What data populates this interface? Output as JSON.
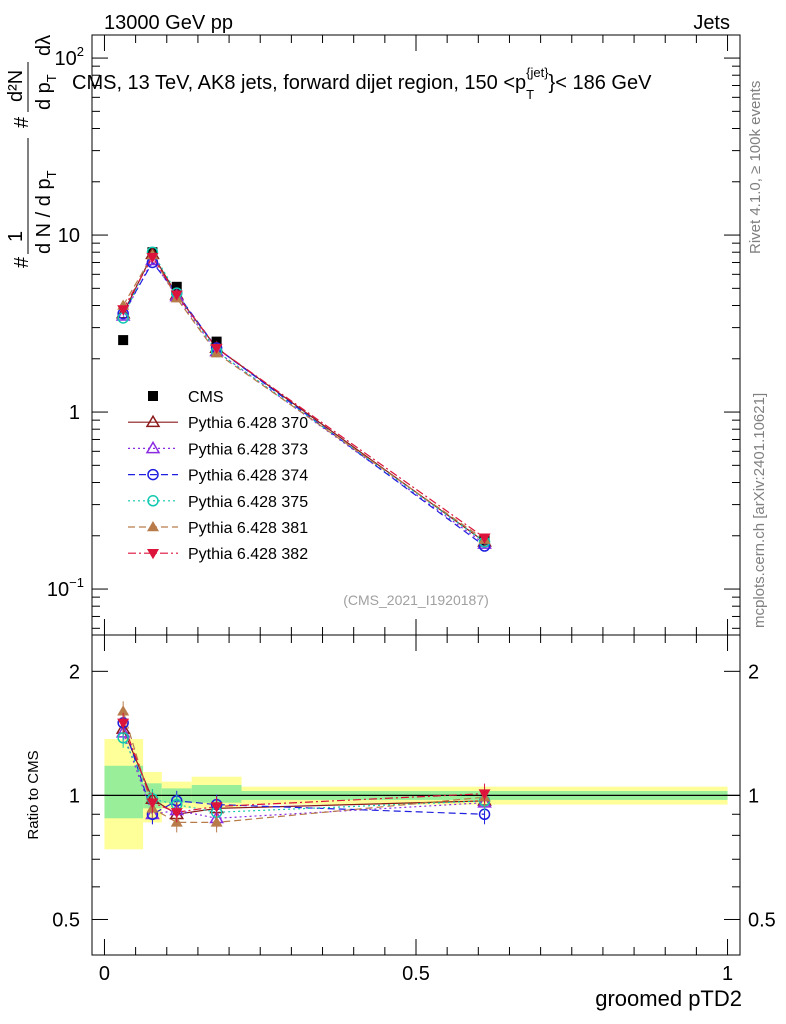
{
  "header": {
    "left": "13000 GeV pp",
    "right": "Jets",
    "side_top": "Rivet 4.1.0, ≥ 100k events",
    "side_bottom": "mcplots.cern.ch [arXiv:2401.10621]",
    "analysis_id": "(CMS_2021_I1920187)"
  },
  "chart_data": [
    {
      "type": "line",
      "panel": "main",
      "title": "CMS, 13 TeV, AK8 jets, forward dijet region, 150 < p_T^{jet} < 186 GeV",
      "title_parts": {
        "main": "CMS, 13 TeV, AK8 jets, forward dijet region, 150 <p",
        "sub": "T",
        "sup": "{jet}",
        "tail": "}< 186 GeV"
      },
      "ylabel": "1/(dN/dp_T) d²N/(dp_T dλ)",
      "ylabel_parts": {
        "hash": "#",
        "one": "1",
        "frac_den": "d N / d p",
        "sub": "T",
        "num": "d²N",
        "den": "d p",
        "den2": "dλ"
      },
      "yscale": "log",
      "ylim": [
        0.055,
        135
      ],
      "xlim": [
        -0.02,
        1.02
      ],
      "yticks": [
        {
          "value": 0.1,
          "label": "10",
          "exp": "−1"
        },
        {
          "value": 1,
          "label": "1",
          "exp": ""
        },
        {
          "value": 10,
          "label": "10",
          "exp": ""
        },
        {
          "value": 100,
          "label": "10",
          "exp": "2"
        }
      ],
      "x": [
        0.03,
        0.077,
        0.116,
        0.18,
        0.61
      ],
      "series": [
        {
          "name": "CMS",
          "color": "#000000",
          "marker": "square-filled",
          "line": "none",
          "values": [
            2.55,
            8.0,
            5.1,
            2.5,
            0.19
          ]
        },
        {
          "name": "Pythia 6.428 370",
          "color": "#8b1a1a",
          "marker": "triangle-open",
          "line": "solid",
          "values": [
            3.6,
            7.8,
            4.6,
            2.3,
            0.185
          ]
        },
        {
          "name": "Pythia 6.428 373",
          "color": "#8a2be2",
          "marker": "triangle-open",
          "line": "dotted",
          "values": [
            3.5,
            7.2,
            4.5,
            2.2,
            0.18
          ]
        },
        {
          "name": "Pythia 6.428 374",
          "color": "#1f1fdf",
          "marker": "circle-open",
          "line": "dashed",
          "values": [
            3.6,
            7.0,
            4.7,
            2.3,
            0.175
          ]
        },
        {
          "name": "Pythia 6.428 375",
          "color": "#11c9b0",
          "marker": "circle-open",
          "line": "dotted",
          "values": [
            3.4,
            8.0,
            4.7,
            2.2,
            0.185
          ]
        },
        {
          "name": "Pythia 6.428 381",
          "color": "#b87c4a",
          "marker": "triangle-filled",
          "line": "dashed",
          "values": [
            4.0,
            7.7,
            4.4,
            2.15,
            0.19
          ]
        },
        {
          "name": "Pythia 6.428 382",
          "color": "#dc143c",
          "marker": "triangle-down-filled",
          "line": "dashdot",
          "values": [
            3.8,
            7.5,
            4.6,
            2.3,
            0.195
          ]
        }
      ]
    },
    {
      "type": "line",
      "panel": "ratio",
      "xlabel": "groomed pTD2",
      "ylabel": "Ratio to CMS",
      "yscale": "log",
      "ylim": [
        0.41,
        2.45
      ],
      "xlim": [
        -0.02,
        1.02
      ],
      "xticks": [
        {
          "value": 0,
          "label": "0"
        },
        {
          "value": 0.5,
          "label": "0.5"
        },
        {
          "value": 1,
          "label": "1"
        }
      ],
      "yticks": [
        {
          "value": 0.5,
          "label": "0.5"
        },
        {
          "value": 1,
          "label": "1"
        },
        {
          "value": 2,
          "label": "2"
        }
      ],
      "bands": [
        {
          "x0": 0.0,
          "x1": 0.062,
          "inner": [
            0.88,
            1.18
          ],
          "outer": [
            0.74,
            1.37
          ]
        },
        {
          "x0": 0.062,
          "x1": 0.092,
          "inner": [
            0.93,
            1.07
          ],
          "outer": [
            0.86,
            1.14
          ]
        },
        {
          "x0": 0.092,
          "x1": 0.14,
          "inner": [
            0.96,
            1.04
          ],
          "outer": [
            0.93,
            1.08
          ]
        },
        {
          "x0": 0.14,
          "x1": 0.22,
          "inner": [
            0.96,
            1.06
          ],
          "outer": [
            0.93,
            1.11
          ]
        },
        {
          "x0": 0.22,
          "x1": 1.0,
          "inner": [
            0.975,
            1.025
          ],
          "outer": [
            0.95,
            1.05
          ]
        }
      ],
      "x": [
        0.03,
        0.077,
        0.116,
        0.18,
        0.61
      ],
      "series": [
        {
          "name": "Pythia 6.428 370",
          "values": [
            1.45,
            0.98,
            0.9,
            0.93,
            0.97
          ]
        },
        {
          "name": "Pythia 6.428 373",
          "values": [
            1.42,
            0.9,
            0.92,
            0.88,
            0.96
          ]
        },
        {
          "name": "Pythia 6.428 374",
          "values": [
            1.5,
            0.9,
            0.97,
            0.95,
            0.9
          ]
        },
        {
          "name": "Pythia 6.428 375",
          "values": [
            1.38,
            0.98,
            0.95,
            0.91,
            0.97
          ]
        },
        {
          "name": "Pythia 6.428 381",
          "values": [
            1.6,
            0.93,
            0.86,
            0.86,
            0.99
          ]
        },
        {
          "name": "Pythia 6.428 382",
          "values": [
            1.5,
            0.96,
            0.91,
            0.94,
            1.01
          ]
        }
      ]
    }
  ]
}
